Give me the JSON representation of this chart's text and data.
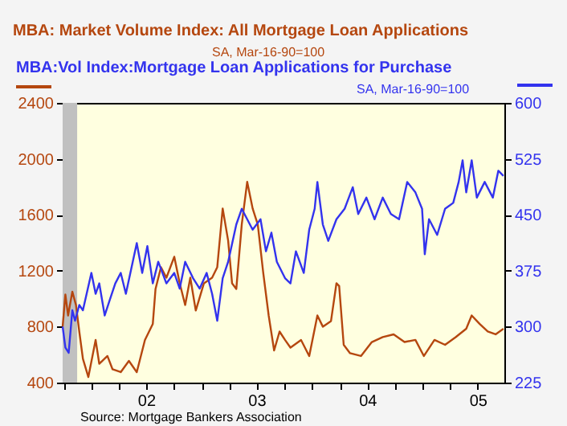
{
  "chart_data": {
    "type": "line",
    "ylabel": "SA, Mar-16-90=100",
    "y2label": "SA, Mar-16-90=100",
    "legend": "top",
    "annotations": [
      "Source:  Mortgage Bankers Association"
    ],
    "xlim": [
      "2001-09-28",
      "2005-09-27"
    ],
    "xticks": [
      {
        "value": "2001-10-01",
        "label": null
      },
      {
        "value": "2002-01-01",
        "label": null
      },
      {
        "value": "2002-04-01",
        "label": null
      },
      {
        "value": "2002-07-01",
        "label": "02"
      },
      {
        "value": "2002-10-01",
        "label": null
      },
      {
        "value": "2003-01-01",
        "label": null
      },
      {
        "value": "2003-04-01",
        "label": null
      },
      {
        "value": "2003-07-01",
        "label": "03"
      },
      {
        "value": "2003-10-01",
        "label": null
      },
      {
        "value": "2004-01-01",
        "label": null
      },
      {
        "value": "2004-04-01",
        "label": null
      },
      {
        "value": "2004-07-01",
        "label": "04"
      },
      {
        "value": "2004-10-01",
        "label": null
      },
      {
        "value": "2005-01-01",
        "label": null
      },
      {
        "value": "2005-04-01",
        "label": null
      },
      {
        "value": "2005-07-01",
        "label": "05"
      }
    ],
    "ylim": [
      400,
      2400
    ],
    "yticks": [
      400,
      800,
      1200,
      1600,
      2000,
      2400
    ],
    "y2lim": [
      225,
      600
    ],
    "y2ticks": [
      225,
      300,
      375,
      450,
      525,
      600
    ],
    "bands": [
      {
        "axis": "x",
        "from": "2001-09-28",
        "to": "2001-11-15",
        "color": "#c0c0c0"
      }
    ],
    "series": [
      {
        "name": "MBA: Market Volume Index: All Mortgage Loan Applications",
        "color": "#b5470f",
        "x": [
          "2001-09-28",
          "2001-10-07",
          "2001-10-16",
          "2001-10-30",
          "2001-11-11",
          "2001-11-22",
          "2001-12-04",
          "2001-12-22",
          "2002-01-15",
          "2002-01-27",
          "2002-02-23",
          "2002-03-12",
          "2002-04-08",
          "2002-05-05",
          "2002-05-31",
          "2002-06-27",
          "2002-07-23",
          "2002-08-01",
          "2002-08-19",
          "2002-09-06",
          "2002-10-02",
          "2002-10-20",
          "2002-11-07",
          "2002-11-24",
          "2002-12-12",
          "2003-01-08",
          "2003-02-04",
          "2003-02-21",
          "2003-03-11",
          "2003-03-29",
          "2003-04-11",
          "2003-04-25",
          "2003-05-13",
          "2003-05-31",
          "2003-06-18",
          "2003-07-05",
          "2003-07-23",
          "2003-08-10",
          "2003-08-28",
          "2003-09-15",
          "2003-10-03",
          "2003-10-21",
          "2003-11-25",
          "2003-12-22",
          "2004-01-18",
          "2004-02-05",
          "2004-03-03",
          "2004-03-21",
          "2004-03-30",
          "2004-04-14",
          "2004-05-05",
          "2004-06-10",
          "2004-07-16",
          "2004-08-21",
          "2004-09-26",
          "2004-11-01",
          "2004-12-07",
          "2005-01-04",
          "2005-02-08",
          "2005-03-15",
          "2005-04-19",
          "2005-05-24",
          "2005-06-11",
          "2005-07-07",
          "2005-08-03",
          "2005-08-29",
          "2005-09-24"
        ],
        "values": [
          800,
          1030,
          880,
          1050,
          955,
          765,
          570,
          440,
          705,
          535,
          590,
          495,
          475,
          555,
          475,
          705,
          820,
          1070,
          1225,
          1150,
          1300,
          1110,
          955,
          1150,
          915,
          1110,
          1150,
          1225,
          1645,
          1415,
          1110,
          1070,
          1530,
          1835,
          1645,
          1530,
          1185,
          880,
          630,
          765,
          705,
          650,
          705,
          590,
          880,
          800,
          840,
          1110,
          1090,
          670,
          610,
          590,
          690,
          725,
          745,
          690,
          705,
          590,
          705,
          670,
          725,
          785,
          880,
          820,
          765,
          745,
          785
        ]
      },
      {
        "name": "MBA:Vol Index:Mortgage Loan Applications for Purchase",
        "color": "#3333ee",
        "axis": "y2",
        "x": [
          "2001-09-28",
          "2001-10-07",
          "2001-10-18",
          "2001-10-30",
          "2001-11-08",
          "2001-11-22",
          "2001-12-04",
          "2002-01-01",
          "2002-01-15",
          "2002-01-27",
          "2002-02-14",
          "2002-03-03",
          "2002-03-21",
          "2002-04-08",
          "2002-04-25",
          "2002-05-31",
          "2002-06-18",
          "2002-07-05",
          "2002-07-23",
          "2002-08-10",
          "2002-09-06",
          "2002-10-02",
          "2002-10-20",
          "2002-11-07",
          "2002-12-03",
          "2002-12-25",
          "2003-01-17",
          "2003-02-04",
          "2003-02-21",
          "2003-03-11",
          "2003-03-29",
          "2003-04-25",
          "2003-05-13",
          "2003-05-31",
          "2003-06-18",
          "2003-07-14",
          "2003-08-01",
          "2003-08-19",
          "2003-09-06",
          "2003-10-03",
          "2003-10-21",
          "2003-11-08",
          "2003-12-04",
          "2003-12-22",
          "2004-01-09",
          "2004-01-18",
          "2004-02-05",
          "2004-02-23",
          "2004-03-21",
          "2004-04-17",
          "2004-05-14",
          "2004-06-01",
          "2004-06-28",
          "2004-07-25",
          "2004-08-21",
          "2004-09-17",
          "2004-10-14",
          "2004-11-10",
          "2004-12-07",
          "2004-12-29",
          "2005-01-07",
          "2005-01-21",
          "2005-02-17",
          "2005-03-15",
          "2005-04-11",
          "2005-04-29",
          "2005-05-12",
          "2005-05-24",
          "2005-06-11",
          "2005-06-28",
          "2005-07-24",
          "2005-08-20",
          "2005-09-07",
          "2005-09-24"
        ],
        "values": [
          300,
          272,
          265,
          322,
          308,
          329,
          322,
          372,
          344,
          358,
          315,
          336,
          358,
          372,
          344,
          412,
          372,
          408,
          358,
          387,
          358,
          372,
          351,
          387,
          365,
          351,
          372,
          344,
          308,
          365,
          387,
          437,
          458,
          444,
          430,
          444,
          401,
          426,
          387,
          365,
          358,
          401,
          372,
          430,
          458,
          494,
          437,
          415,
          444,
          458,
          487,
          451,
          473,
          444,
          473,
          451,
          444,
          494,
          480,
          458,
          397,
          444,
          423,
          458,
          466,
          494,
          523,
          480,
          523,
          473,
          494,
          473,
          509,
          502
        ]
      }
    ]
  }
}
